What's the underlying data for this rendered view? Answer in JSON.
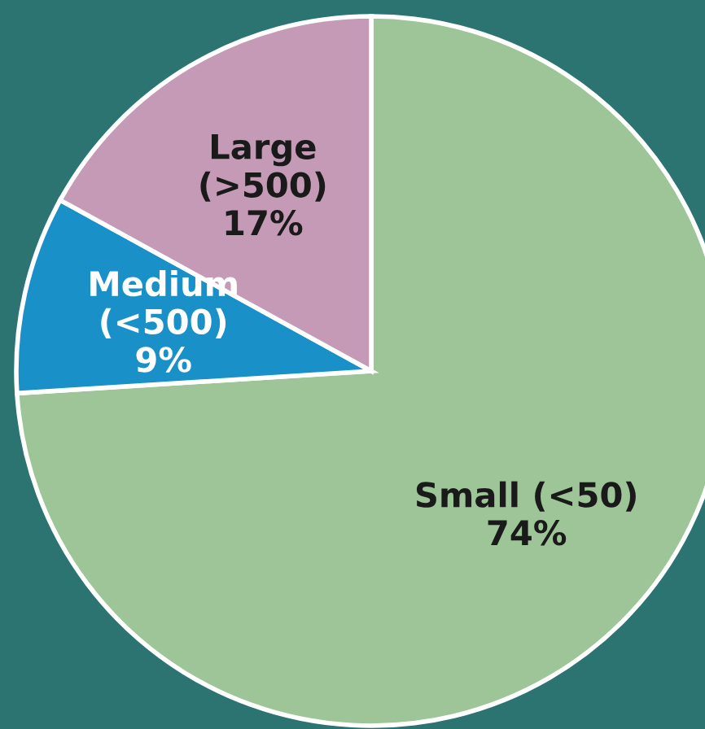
{
  "chart_data": {
    "type": "pie",
    "categories": [
      "Small (<50)",
      "Medium (<500)",
      "Large (>500)"
    ],
    "values": [
      74,
      9,
      17
    ],
    "colors": [
      "#9dc598",
      "#1a90c8",
      "#c49ab6"
    ],
    "value_labels": [
      "74%",
      "9%",
      "17%"
    ],
    "legend": false
  }
}
